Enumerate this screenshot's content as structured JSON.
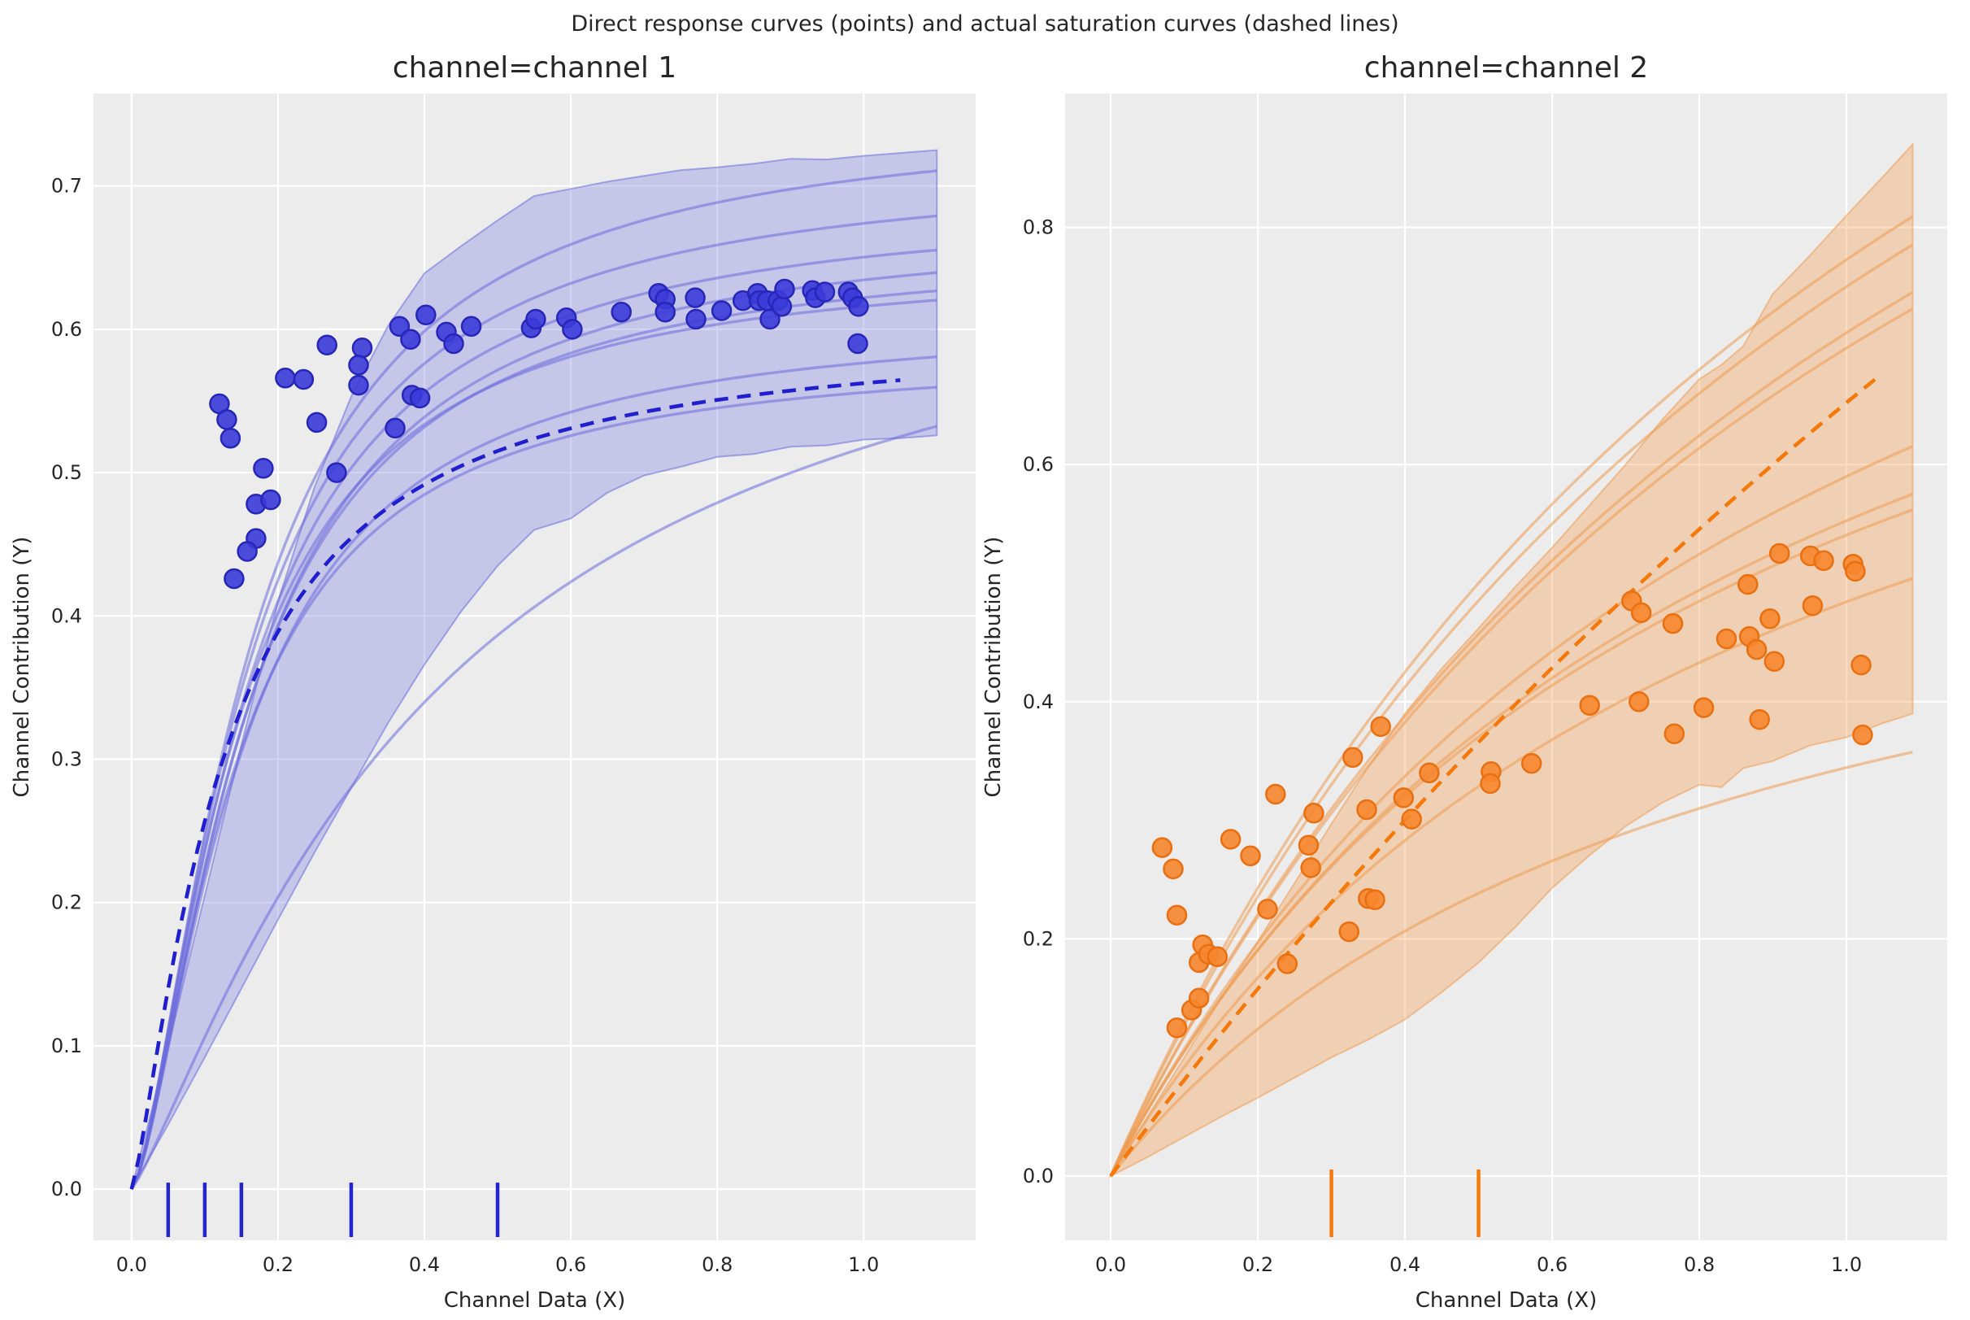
{
  "suptitle": "Direct response curves (points) and actual saturation curves (dashed lines)",
  "colors": {
    "page_bg": "#ffffff",
    "axes_bg": "#ececec",
    "grid": "#ffffff",
    "text": "#262626",
    "channel1": {
      "point_fill": "#3b3bd9",
      "point_edge": "#2626b8",
      "curve": "#6b6bdc",
      "band": "#8989e6",
      "dashed": "#1f1fd0",
      "rug": "#2525cc"
    },
    "channel2": {
      "point_fill": "#f6862d",
      "point_edge": "#e96f10",
      "curve": "#ef9a50",
      "band": "#f5a35c",
      "dashed": "#f5780a",
      "rug": "#f57a0c"
    }
  },
  "chart_data": [
    {
      "type": "scatter",
      "title": "channel=channel 1",
      "xlabel": "Channel Data (X)",
      "ylabel": "Channel Contribution (Y)",
      "xlim": [
        -0.052,
        1.153
      ],
      "ylim": [
        -0.0357,
        0.7645
      ],
      "xticks": [
        0.0,
        0.2,
        0.4,
        0.6,
        0.8,
        1.0
      ],
      "yticks": [
        0.0,
        0.1,
        0.2,
        0.3,
        0.4,
        0.5,
        0.6,
        0.7
      ],
      "grid": true,
      "legend": "none",
      "rug": [
        0.05,
        0.1,
        0.15,
        0.3,
        0.5
      ],
      "scatter": [
        [
          0.12,
          0.548
        ],
        [
          0.13,
          0.537
        ],
        [
          0.135,
          0.524
        ],
        [
          0.18,
          0.503
        ],
        [
          0.17,
          0.478
        ],
        [
          0.19,
          0.481
        ],
        [
          0.17,
          0.454
        ],
        [
          0.158,
          0.445
        ],
        [
          0.14,
          0.426
        ],
        [
          0.21,
          0.566
        ],
        [
          0.235,
          0.565
        ],
        [
          0.267,
          0.589
        ],
        [
          0.253,
          0.535
        ],
        [
          0.28,
          0.5
        ],
        [
          0.315,
          0.587
        ],
        [
          0.31,
          0.575
        ],
        [
          0.31,
          0.561
        ],
        [
          0.36,
          0.531
        ],
        [
          0.366,
          0.602
        ],
        [
          0.381,
          0.593
        ],
        [
          0.402,
          0.61
        ],
        [
          0.383,
          0.554
        ],
        [
          0.394,
          0.552
        ],
        [
          0.43,
          0.598
        ],
        [
          0.44,
          0.59
        ],
        [
          0.464,
          0.602
        ],
        [
          0.546,
          0.601
        ],
        [
          0.552,
          0.607
        ],
        [
          0.594,
          0.608
        ],
        [
          0.602,
          0.6
        ],
        [
          0.669,
          0.612
        ],
        [
          0.72,
          0.625
        ],
        [
          0.729,
          0.621
        ],
        [
          0.729,
          0.612
        ],
        [
          0.77,
          0.622
        ],
        [
          0.771,
          0.607
        ],
        [
          0.806,
          0.613
        ],
        [
          0.835,
          0.62
        ],
        [
          0.855,
          0.625
        ],
        [
          0.857,
          0.62
        ],
        [
          0.868,
          0.62
        ],
        [
          0.872,
          0.607
        ],
        [
          0.883,
          0.62
        ],
        [
          0.888,
          0.616
        ],
        [
          0.892,
          0.628
        ],
        [
          0.93,
          0.627
        ],
        [
          0.934,
          0.622
        ],
        [
          0.947,
          0.626
        ],
        [
          0.979,
          0.626
        ],
        [
          0.985,
          0.622
        ],
        [
          0.993,
          0.616
        ],
        [
          0.992,
          0.59
        ]
      ],
      "curves": [
        {
          "p": 0.75,
          "k": 0.16,
          "n": 1.5
        },
        {
          "p": 0.715,
          "k": 0.155,
          "n": 1.5
        },
        {
          "p": 0.69,
          "k": 0.155,
          "n": 1.5
        },
        {
          "p": 0.675,
          "k": 0.16,
          "n": 1.5
        },
        {
          "p": 0.66,
          "k": 0.155,
          "n": 1.5
        },
        {
          "p": 0.65,
          "k": 0.145,
          "n": 1.5
        },
        {
          "p": 0.61,
          "k": 0.15,
          "n": 1.5
        },
        {
          "p": 0.585,
          "k": 0.14,
          "n": 1.5
        },
        {
          "p": 0.7,
          "k": 0.42,
          "n": 1.2
        }
      ],
      "curves_xend": 1.1,
      "dashed": {
        "p": 0.6,
        "k": 0.125,
        "n": 1.3,
        "xend": 1.05
      },
      "band": {
        "x": [
          0,
          0.05,
          0.1,
          0.15,
          0.2,
          0.25,
          0.3,
          0.35,
          0.4,
          0.45,
          0.5,
          0.55,
          0.6,
          0.65,
          0.7,
          0.75,
          0.8,
          0.85,
          0.9,
          0.95,
          1.0,
          1.05,
          1.1
        ],
        "upper": [
          0,
          0.1,
          0.205,
          0.31,
          0.41,
          0.49,
          0.553,
          0.602,
          0.639,
          0.658,
          0.676,
          0.693,
          0.698,
          0.703,
          0.707,
          0.711,
          0.713,
          0.7155,
          0.719,
          0.7185,
          0.721,
          0.723,
          0.725
        ],
        "lower": [
          0,
          0.045,
          0.092,
          0.14,
          0.188,
          0.235,
          0.28,
          0.325,
          0.366,
          0.403,
          0.435,
          0.46,
          0.468,
          0.486,
          0.498,
          0.504,
          0.511,
          0.513,
          0.518,
          0.519,
          0.523,
          0.524,
          0.526
        ]
      }
    },
    {
      "type": "scatter",
      "title": "channel=channel 2",
      "xlabel": "Channel Data (X)",
      "ylabel": "Channel Contribution (Y)",
      "xlim": [
        -0.062,
        1.137
      ],
      "ylim": [
        -0.0542,
        0.9129
      ],
      "xticks": [
        0.0,
        0.2,
        0.4,
        0.6,
        0.8,
        1.0
      ],
      "yticks": [
        0.0,
        0.2,
        0.4,
        0.6,
        0.8
      ],
      "grid": true,
      "legend": "none",
      "rug": [
        0.3,
        0.5
      ],
      "scatter": [
        [
          0.07,
          0.277
        ],
        [
          0.085,
          0.259
        ],
        [
          0.09,
          0.22
        ],
        [
          0.09,
          0.125
        ],
        [
          0.11,
          0.14
        ],
        [
          0.12,
          0.15
        ],
        [
          0.12,
          0.18
        ],
        [
          0.125,
          0.195
        ],
        [
          0.133,
          0.187
        ],
        [
          0.145,
          0.185
        ],
        [
          0.163,
          0.284
        ],
        [
          0.19,
          0.27
        ],
        [
          0.213,
          0.225
        ],
        [
          0.224,
          0.322
        ],
        [
          0.24,
          0.179
        ],
        [
          0.269,
          0.279
        ],
        [
          0.272,
          0.26
        ],
        [
          0.276,
          0.306
        ],
        [
          0.324,
          0.206
        ],
        [
          0.329,
          0.353
        ],
        [
          0.348,
          0.309
        ],
        [
          0.35,
          0.234
        ],
        [
          0.359,
          0.233
        ],
        [
          0.367,
          0.379
        ],
        [
          0.398,
          0.319
        ],
        [
          0.409,
          0.301
        ],
        [
          0.433,
          0.34
        ],
        [
          0.517,
          0.341
        ],
        [
          0.516,
          0.331
        ],
        [
          0.572,
          0.348
        ],
        [
          0.651,
          0.397
        ],
        [
          0.708,
          0.485
        ],
        [
          0.721,
          0.475
        ],
        [
          0.718,
          0.4
        ],
        [
          0.764,
          0.466
        ],
        [
          0.766,
          0.373
        ],
        [
          0.806,
          0.395
        ],
        [
          0.837,
          0.453
        ],
        [
          0.866,
          0.499
        ],
        [
          0.868,
          0.455
        ],
        [
          0.878,
          0.444
        ],
        [
          0.882,
          0.385
        ],
        [
          0.896,
          0.47
        ],
        [
          0.902,
          0.434
        ],
        [
          0.909,
          0.525
        ],
        [
          0.951,
          0.523
        ],
        [
          0.954,
          0.481
        ],
        [
          0.969,
          0.519
        ],
        [
          1.009,
          0.516
        ],
        [
          1.012,
          0.51
        ],
        [
          1.02,
          0.431
        ],
        [
          1.022,
          0.372
        ]
      ],
      "curves": [
        {
          "p": 1.7,
          "k": 1.2,
          "n": 1
        },
        {
          "p": 1.65,
          "k": 1.2,
          "n": 1
        },
        {
          "p": 1.6,
          "k": 1.25,
          "n": 1
        },
        {
          "p": 1.55,
          "k": 1.22,
          "n": 1
        },
        {
          "p": 1.18,
          "k": 1.0,
          "n": 1
        },
        {
          "p": 1.05,
          "k": 0.9,
          "n": 1
        },
        {
          "p": 1.0,
          "k": 0.85,
          "n": 1
        },
        {
          "p": 0.92,
          "k": 0.9,
          "n": 1
        },
        {
          "p": 0.62,
          "k": 0.8,
          "n": 1
        }
      ],
      "curves_xend": 1.09,
      "dashed": {
        "p": 3.0,
        "k": 3.6,
        "n": 1,
        "xend": 1.04
      },
      "band": {
        "x": [
          0,
          0.05,
          0.1,
          0.15,
          0.2,
          0.25,
          0.3,
          0.35,
          0.4,
          0.45,
          0.5,
          0.55,
          0.6,
          0.65,
          0.7,
          0.75,
          0.8,
          0.83,
          0.86,
          0.9,
          0.95,
          1.0,
          1.05,
          1.09
        ],
        "upper": [
          0,
          0.05,
          0.1,
          0.15,
          0.198,
          0.247,
          0.297,
          0.345,
          0.39,
          0.428,
          0.462,
          0.497,
          0.53,
          0.565,
          0.6,
          0.638,
          0.672,
          0.684,
          0.7,
          0.744,
          0.776,
          0.81,
          0.843,
          0.87
        ],
        "lower": [
          0,
          0.016,
          0.033,
          0.05,
          0.066,
          0.083,
          0.1,
          0.115,
          0.132,
          0.155,
          0.18,
          0.21,
          0.243,
          0.27,
          0.295,
          0.315,
          0.33,
          0.328,
          0.344,
          0.35,
          0.363,
          0.37,
          0.382,
          0.39
        ]
      }
    }
  ]
}
